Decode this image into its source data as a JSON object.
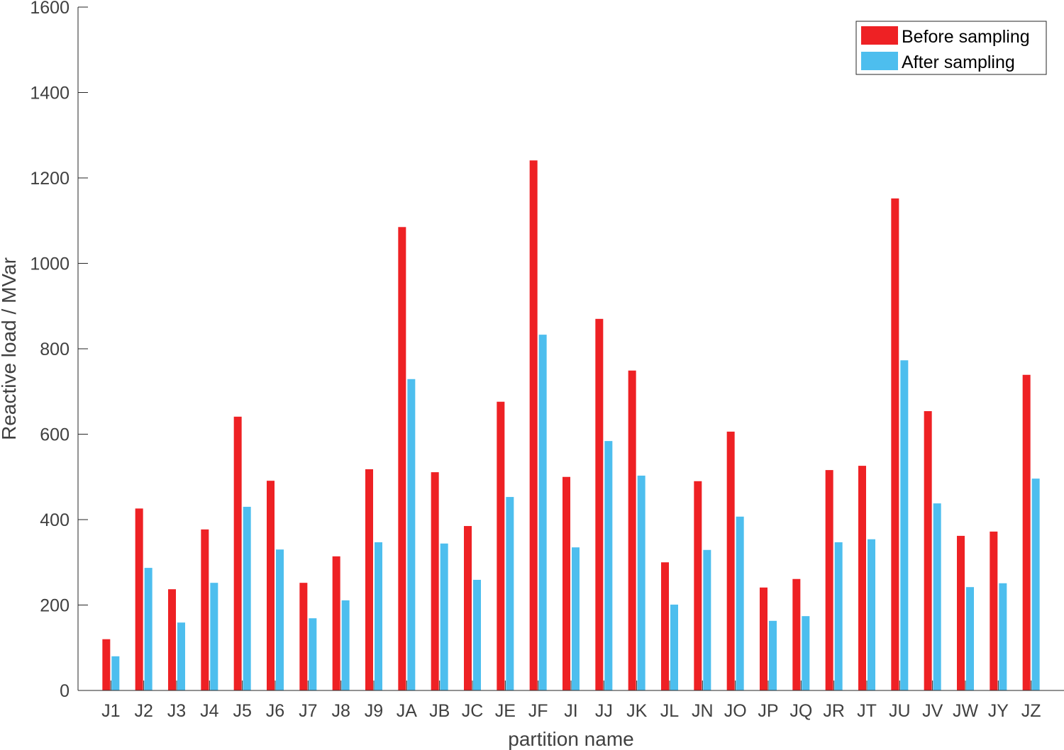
{
  "chart_data": {
    "type": "bar",
    "title": "",
    "xlabel": "partition name",
    "ylabel": "Reactive load / MVar",
    "ylim": [
      0,
      1600
    ],
    "yticks": [
      0,
      200,
      400,
      600,
      800,
      1000,
      1200,
      1400,
      1600
    ],
    "grid": false,
    "legend_placement": "top-right",
    "categories": [
      "J1",
      "J2",
      "J3",
      "J4",
      "J5",
      "J6",
      "J7",
      "J8",
      "J9",
      "JA",
      "JB",
      "JC",
      "JE",
      "JF",
      "JI",
      "JJ",
      "JK",
      "JL",
      "JN",
      "JO",
      "JP",
      "JQ",
      "JR",
      "JT",
      "JU",
      "JV",
      "JW",
      "JY",
      "JZ"
    ],
    "series": [
      {
        "name": "Before sampling",
        "color": "#ee2124",
        "values": [
          120,
          426,
          237,
          377,
          641,
          491,
          252,
          314,
          518,
          1085,
          511,
          385,
          676,
          1241,
          500,
          870,
          749,
          300,
          490,
          606,
          241,
          261,
          516,
          526,
          1152,
          654,
          362,
          372,
          739
        ]
      },
      {
        "name": "After sampling",
        "color": "#4dbeee",
        "values": [
          80,
          287,
          159,
          252,
          430,
          330,
          169,
          211,
          347,
          729,
          344,
          259,
          453,
          833,
          335,
          584,
          503,
          201,
          329,
          407,
          163,
          174,
          347,
          354,
          773,
          438,
          242,
          251,
          496
        ]
      }
    ]
  }
}
